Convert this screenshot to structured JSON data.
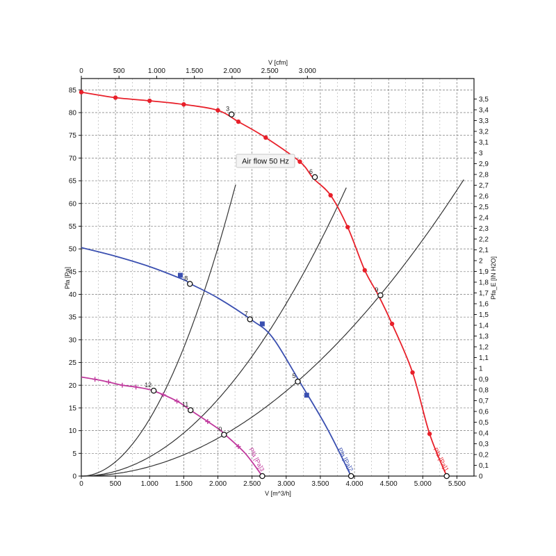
{
  "chart_data": {
    "type": "line",
    "x_bottom": {
      "label": "V [m^3/h]",
      "range": [
        0,
        5750
      ],
      "ticks": [
        0,
        500,
        1000,
        1500,
        2000,
        2500,
        3000,
        3500,
        4000,
        4500,
        5000,
        5500
      ],
      "tick_labels": [
        "0",
        "500",
        "1.000",
        "1.500",
        "2.000",
        "2.500",
        "3.000",
        "3.500",
        "4.000",
        "4.500",
        "5.000",
        "5.500"
      ]
    },
    "x_top": {
      "label": "V [cfm]",
      "ticks": [
        0,
        500,
        1000,
        1500,
        2000,
        2500,
        3000
      ],
      "tick_labels": [
        "0",
        "500",
        "1.000",
        "1.500",
        "2.000",
        "2.500",
        "3.000"
      ]
    },
    "y_left": {
      "label": "Pfa [Pa]",
      "range": [
        0,
        87.5
      ],
      "ticks": [
        0,
        5,
        10,
        15,
        20,
        25,
        30,
        35,
        40,
        45,
        50,
        55,
        60,
        65,
        70,
        75,
        80,
        85
      ],
      "tick_labels": [
        "0",
        "5",
        "10",
        "15",
        "20",
        "25",
        "30",
        "35",
        "40",
        "45",
        "50",
        "55",
        "60",
        "65",
        "70",
        "75",
        "80",
        "85"
      ]
    },
    "y_right": {
      "label": "Pfa_E [IN H2O]",
      "ticks": [
        0,
        0.1,
        0.2,
        0.3,
        0.4,
        0.5,
        0.6,
        0.7,
        0.8,
        0.9,
        1,
        1.1,
        1.2,
        1.3,
        1.4,
        1.5,
        1.6,
        1.7,
        1.8,
        1.9,
        2,
        2.1,
        2.2,
        2.3,
        2.4,
        2.5,
        2.6,
        2.7,
        2.8,
        2.9,
        3,
        3.1,
        3.2,
        3.3,
        3.4,
        3.5
      ],
      "tick_labels": [
        "0",
        "0,1",
        "0,2",
        "0,3",
        "0,4",
        "0,5",
        "0,6",
        "0,7",
        "0,8",
        "0,9",
        "1",
        "1,1",
        "1,2",
        "1,3",
        "1,4",
        "1,5",
        "1,6",
        "1,7",
        "1,8",
        "1,9",
        "2",
        "2,1",
        "2,2",
        "2,3",
        "2,4",
        "2,5",
        "2,6",
        "2,7",
        "2,8",
        "2,9",
        "3",
        "3,1",
        "3,2",
        "3,3",
        "3,4",
        "3,5"
      ]
    },
    "grid": true,
    "annotation": "Air flow 50 Hz",
    "series": [
      {
        "name": "Pfa [Pa]1",
        "color": "#e8202a",
        "marker": "circle",
        "x": [
          0,
          500,
          1000,
          1500,
          2000,
          2300,
          2700,
          3200,
          3400,
          3650,
          3900,
          4150,
          4350,
          4550,
          4850,
          5100,
          5350
        ],
        "y": [
          84.5,
          83.3,
          82.6,
          81.8,
          80.5,
          78,
          74.5,
          69.2,
          65.5,
          61.8,
          54.8,
          45.3,
          39.8,
          33.5,
          22.8,
          9.3,
          0
        ],
        "markers_x": [
          0,
          500,
          1000,
          1500,
          2000,
          2300,
          2700,
          3200,
          3650,
          3900,
          4150,
          4550,
          4850,
          5100
        ],
        "markers_y": [
          84.5,
          83.3,
          82.6,
          81.8,
          80.5,
          78,
          74.5,
          69.2,
          61.8,
          54.8,
          45.3,
          33.5,
          22.8,
          9.3
        ]
      },
      {
        "name": "Pfa [Pa]2",
        "color": "#3a4fb0",
        "marker": "square",
        "x": [
          0,
          500,
          1000,
          1500,
          1600,
          2000,
          2500,
          2800,
          3200,
          3600,
          3950
        ],
        "y": [
          50.3,
          48.4,
          46.1,
          43.2,
          42.3,
          39.2,
          34.3,
          30.5,
          20.7,
          10.5,
          0
        ],
        "markers_x": [
          1450,
          2650,
          3300
        ],
        "markers_y": [
          44.2,
          33.5,
          17.8
        ]
      },
      {
        "name": "Pfa [Pa]3",
        "color": "#c0389d",
        "marker": "plus",
        "x": [
          0,
          200,
          400,
          600,
          800,
          1050,
          1400,
          1600,
          2000,
          2100,
          2400,
          2650
        ],
        "y": [
          21.8,
          21.3,
          20.7,
          20.0,
          19.6,
          18.8,
          16.5,
          14.5,
          10.5,
          9.2,
          5,
          0
        ],
        "markers_x": [
          200,
          400,
          600,
          800,
          1200,
          1400,
          1850,
          2300
        ],
        "markers_y": [
          21.3,
          20.7,
          20.0,
          19.6,
          17.9,
          16.5,
          12,
          6.5
        ]
      }
    ],
    "system_curves": [
      {
        "k": 1.256e-05,
        "x_max": 2270
      },
      {
        "k": 4.217e-06,
        "x_max": 3880
      },
      {
        "k": 2.0805e-06,
        "x_max": 5600
      }
    ],
    "operating_points": [
      {
        "label": "3",
        "x": 2200,
        "y": 79.6
      },
      {
        "label": "6",
        "x": 3420,
        "y": 65.8
      },
      {
        "label": "9",
        "x": 4380,
        "y": 39.8
      },
      {
        "label": "8",
        "x": 1590,
        "y": 42.3
      },
      {
        "label": "7",
        "x": 2470,
        "y": 34.5
      },
      {
        "label": "5",
        "x": 3170,
        "y": 20.8
      },
      {
        "label": "12",
        "x": 1060,
        "y": 18.8
      },
      {
        "label": "11",
        "x": 1600,
        "y": 14.5
      },
      {
        "label": "0",
        "x": 2090,
        "y": 9.1
      },
      {
        "label": "",
        "x": 3950,
        "y": 0
      },
      {
        "label": "",
        "x": 2650,
        "y": 0
      },
      {
        "label": "",
        "x": 5350,
        "y": 0
      }
    ]
  }
}
